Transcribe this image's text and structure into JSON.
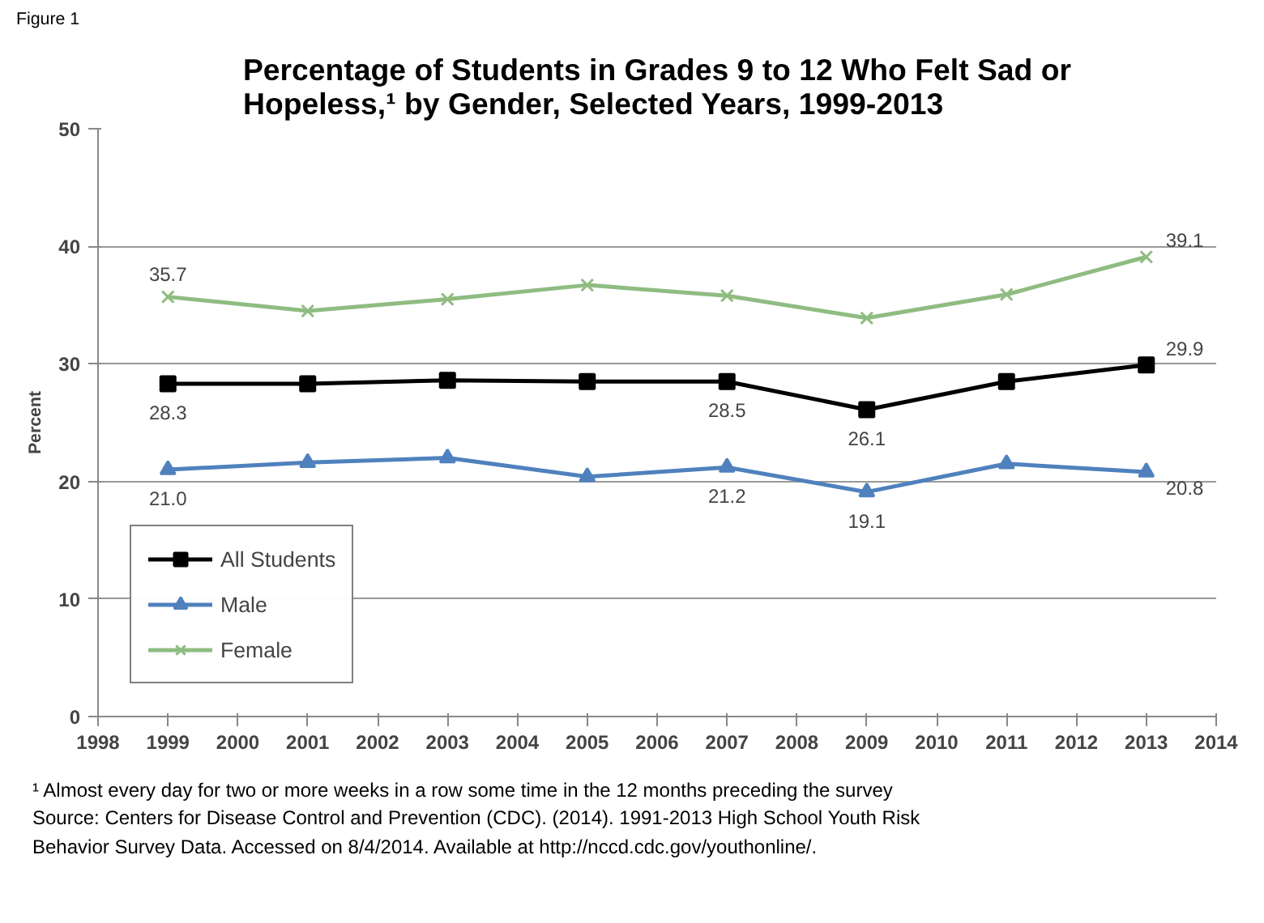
{
  "chart_data": {
    "type": "line",
    "title": "Percentage of Students in Grades 9 to 12 Who Felt Sad or\nHopeless,¹ by Gender, Selected Years, 1999-2013",
    "ylabel": "Percent",
    "x": [
      1999,
      2001,
      2003,
      2005,
      2007,
      2009,
      2011,
      2013
    ],
    "xlim": [
      1998,
      2014
    ],
    "xticks": [
      1998,
      1999,
      2000,
      2001,
      2002,
      2003,
      2004,
      2005,
      2006,
      2007,
      2008,
      2009,
      2010,
      2011,
      2012,
      2013,
      2014
    ],
    "ylim": [
      0,
      50
    ],
    "yticks": [
      0,
      10,
      20,
      30,
      40,
      50
    ],
    "grid": "y",
    "legend": "bottom left",
    "series": [
      {
        "name": "All Students",
        "color": "#000000",
        "marker": "square",
        "values": [
          28.3,
          28.3,
          28.6,
          28.5,
          28.5,
          26.1,
          28.5,
          29.9
        ],
        "value_labels": [
          "28.3",
          null,
          null,
          null,
          "28.5",
          "26.1",
          null,
          "29.9"
        ]
      },
      {
        "name": "Male",
        "color": "#4f81bd",
        "marker": "triangle",
        "values": [
          21.0,
          21.6,
          22.0,
          20.4,
          21.2,
          19.1,
          21.5,
          20.8
        ],
        "value_labels": [
          "21.0",
          null,
          null,
          null,
          "21.2",
          "19.1",
          null,
          "20.8"
        ]
      },
      {
        "name": "Female",
        "color": "#8fbc81",
        "marker": "cross",
        "values": [
          35.7,
          34.5,
          35.5,
          36.7,
          35.8,
          33.9,
          35.9,
          39.1
        ],
        "value_labels": [
          "35.7",
          null,
          null,
          null,
          null,
          null,
          null,
          "39.1"
        ]
      }
    ],
    "annotations": [
      "Figure 1",
      "¹ Almost every day for two or more weeks in a row some time in the 12 months preceding the survey",
      "Source: Centers for Disease Control and Prevention (CDC). (2014). 1991-2013  High School Youth Risk Behavior Survey Data. Accessed on 8/4/2014. Available at http://nccd.cdc.gov/youthonline/."
    ]
  }
}
